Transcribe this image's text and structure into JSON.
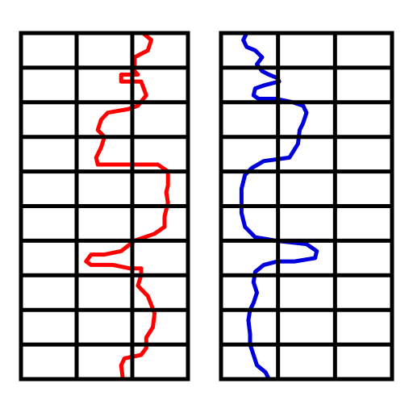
{
  "panels": [
    {
      "id": "left",
      "columns": 3,
      "rows": 10,
      "curve_color": "#ff0000",
      "curve": [
        [
          0.73,
          0.0
        ],
        [
          0.78,
          0.02
        ],
        [
          0.76,
          0.05
        ],
        [
          0.68,
          0.07
        ],
        [
          0.68,
          0.11
        ],
        [
          0.7,
          0.12
        ],
        [
          0.6,
          0.12
        ],
        [
          0.6,
          0.14
        ],
        [
          0.72,
          0.14
        ],
        [
          0.75,
          0.18
        ],
        [
          0.7,
          0.21
        ],
        [
          0.64,
          0.22
        ],
        [
          0.52,
          0.23
        ],
        [
          0.48,
          0.25
        ],
        [
          0.46,
          0.28
        ],
        [
          0.5,
          0.3
        ],
        [
          0.48,
          0.33
        ],
        [
          0.45,
          0.36
        ],
        [
          0.46,
          0.38
        ],
        [
          0.55,
          0.38
        ],
        [
          0.7,
          0.38
        ],
        [
          0.82,
          0.38
        ],
        [
          0.88,
          0.4
        ],
        [
          0.88,
          0.44
        ],
        [
          0.87,
          0.46
        ],
        [
          0.88,
          0.49
        ],
        [
          0.86,
          0.53
        ],
        [
          0.86,
          0.56
        ],
        [
          0.8,
          0.58
        ],
        [
          0.68,
          0.6
        ],
        [
          0.6,
          0.63
        ],
        [
          0.5,
          0.64
        ],
        [
          0.42,
          0.64
        ],
        [
          0.39,
          0.66
        ],
        [
          0.42,
          0.67
        ],
        [
          0.55,
          0.67
        ],
        [
          0.65,
          0.68
        ],
        [
          0.72,
          0.68
        ],
        [
          0.72,
          0.7
        ],
        [
          0.7,
          0.73
        ],
        [
          0.72,
          0.74
        ],
        [
          0.76,
          0.76
        ],
        [
          0.8,
          0.81
        ],
        [
          0.79,
          0.85
        ],
        [
          0.75,
          0.88
        ],
        [
          0.75,
          0.91
        ],
        [
          0.72,
          0.93
        ],
        [
          0.62,
          0.94
        ],
        [
          0.6,
          0.96
        ],
        [
          0.61,
          1.0
        ]
      ]
    },
    {
      "id": "right",
      "columns": 3,
      "rows": 10,
      "curve_color": "#0000dd",
      "curve": [
        [
          0.15,
          0.0
        ],
        [
          0.13,
          0.02
        ],
        [
          0.15,
          0.04
        ],
        [
          0.2,
          0.05
        ],
        [
          0.24,
          0.07
        ],
        [
          0.21,
          0.09
        ],
        [
          0.24,
          0.11
        ],
        [
          0.28,
          0.12
        ],
        [
          0.33,
          0.13
        ],
        [
          0.34,
          0.14
        ],
        [
          0.26,
          0.15
        ],
        [
          0.2,
          0.16
        ],
        [
          0.19,
          0.18
        ],
        [
          0.22,
          0.19
        ],
        [
          0.32,
          0.19
        ],
        [
          0.42,
          0.2
        ],
        [
          0.48,
          0.21
        ],
        [
          0.5,
          0.23
        ],
        [
          0.48,
          0.26
        ],
        [
          0.46,
          0.28
        ],
        [
          0.45,
          0.32
        ],
        [
          0.4,
          0.36
        ],
        [
          0.25,
          0.37
        ],
        [
          0.18,
          0.39
        ],
        [
          0.14,
          0.41
        ],
        [
          0.12,
          0.45
        ],
        [
          0.12,
          0.48
        ],
        [
          0.12,
          0.52
        ],
        [
          0.14,
          0.56
        ],
        [
          0.2,
          0.59
        ],
        [
          0.32,
          0.6
        ],
        [
          0.5,
          0.61
        ],
        [
          0.56,
          0.63
        ],
        [
          0.55,
          0.65
        ],
        [
          0.43,
          0.66
        ],
        [
          0.33,
          0.66
        ],
        [
          0.25,
          0.67
        ],
        [
          0.2,
          0.69
        ],
        [
          0.19,
          0.72
        ],
        [
          0.21,
          0.75
        ],
        [
          0.19,
          0.78
        ],
        [
          0.17,
          0.8
        ],
        [
          0.16,
          0.83
        ],
        [
          0.17,
          0.87
        ],
        [
          0.17,
          0.9
        ],
        [
          0.19,
          0.93
        ],
        [
          0.21,
          0.96
        ],
        [
          0.26,
          0.98
        ],
        [
          0.28,
          1.0
        ]
      ]
    }
  ]
}
